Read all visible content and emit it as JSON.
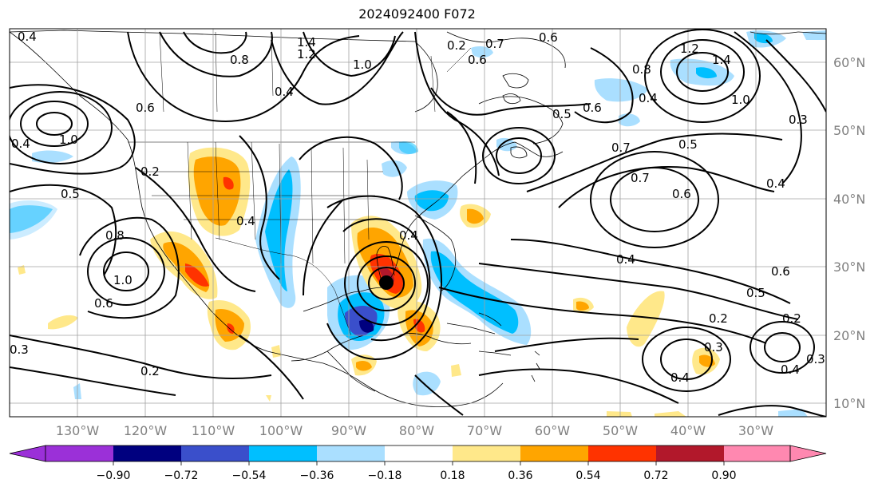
{
  "title": "2024092400 F072",
  "map": {
    "lon_labels": [
      "130°W",
      "120°W",
      "110°W",
      "100°W",
      "90°W",
      "80°W",
      "70°W",
      "60°W",
      "50°W",
      "40°W",
      "30°W"
    ],
    "lat_labels": [
      "60°N",
      "50°N",
      "40°N",
      "30°N",
      "20°N",
      "10°N"
    ],
    "contour_labels": [
      "0.4",
      "1.4",
      "1.2",
      "0.8",
      "1.0",
      "0.6",
      "0.7",
      "0.2",
      "0.6",
      "0.8",
      "1.2",
      "1.4",
      "1.0",
      "0.4",
      "0.5",
      "0.6",
      "0.4",
      "0.7",
      "0.5",
      "0.3",
      "1.0",
      "0.4",
      "0.2",
      "0.5",
      "0.6",
      "0.8",
      "0.4",
      "0.4",
      "0.7",
      "0.6",
      "0.4",
      "1.0",
      "0.6",
      "0.6",
      "0.5",
      "0.4",
      "0.2",
      "0.3",
      "0.2",
      "0.3",
      "0.4",
      "0.3",
      "0.4",
      "0.2"
    ],
    "land_color": "#000000",
    "storm_marker_color": "#000000"
  },
  "colorbar": {
    "ticks": [
      "−0.90",
      "−0.72",
      "−0.54",
      "−0.36",
      "−0.18",
      "0.18",
      "0.36",
      "0.54",
      "0.72",
      "0.90"
    ],
    "colors": [
      "#9b30d8",
      "#00007f",
      "#3a4fcb",
      "#00bfff",
      "#aadfff",
      "#ffffff",
      "#ffe88a",
      "#ffa500",
      "#ff3300",
      "#b2182b",
      "#ff88b0"
    ]
  }
}
